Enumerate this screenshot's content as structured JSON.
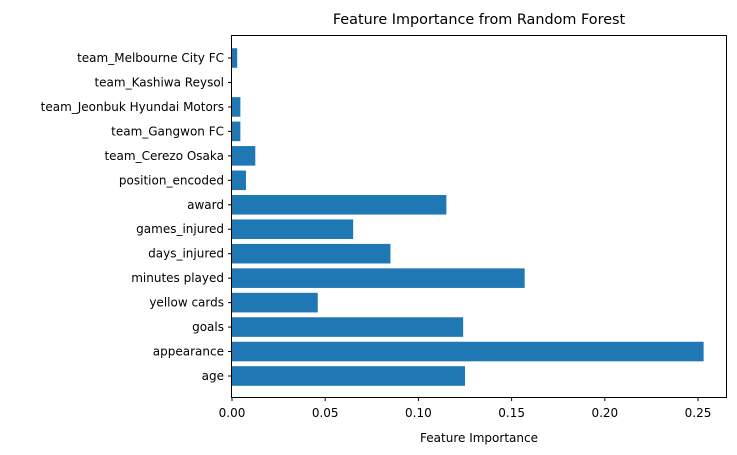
{
  "chart_data": {
    "type": "bar",
    "orientation": "horizontal",
    "title": "Feature Importance from Random Forest",
    "xlabel": "Feature Importance",
    "ylabel": "",
    "xlim": [
      0,
      0.265
    ],
    "xticks": [
      "0.00",
      "0.05",
      "0.10",
      "0.15",
      "0.20",
      "0.25"
    ],
    "categories": [
      "age",
      "appearance",
      "goals",
      "yellow cards",
      "minutes played",
      "days_injured",
      "games_injured",
      "award",
      "position_encoded",
      "team_Cerezo Osaka",
      "team_Gangwon FC",
      "team_Jeonbuk Hyundai Motors",
      "team_Kashiwa Reysol",
      "team_Melbourne City FC"
    ],
    "values": [
      0.125,
      0.253,
      0.124,
      0.046,
      0.157,
      0.085,
      0.065,
      0.115,
      0.0075,
      0.0125,
      0.0045,
      0.0045,
      0.0,
      0.0028
    ],
    "bar_color": "#1f77b4",
    "grid": false,
    "legend": false
  }
}
